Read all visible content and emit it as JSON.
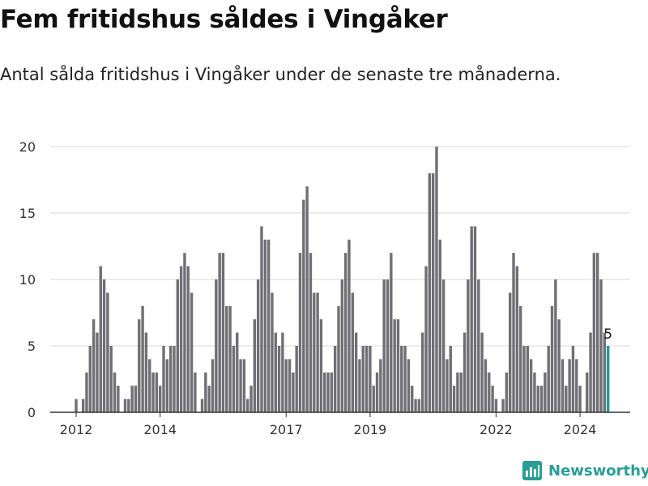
{
  "header": {
    "title": "Fem fritidshus såldes i Vingåker",
    "subtitle": "Antal sålda fritidshus i Vingåker under de senaste tre månaderna."
  },
  "branding": {
    "name": "Newsworthy",
    "icon": "newsworthy-logo-icon",
    "color": "#2a9d96"
  },
  "colors": {
    "bar": "#706f73",
    "highlight": "#1a9a95",
    "grid": "#d9d9d9",
    "axis": "#333333"
  },
  "chart_data": {
    "type": "bar",
    "title": "",
    "xlabel": "",
    "ylabel": "",
    "ylim": [
      0,
      20
    ],
    "yticks": [
      0,
      5,
      10,
      15,
      20
    ],
    "xticks": [
      {
        "label": "2012",
        "index": 1
      },
      {
        "label": "2014",
        "index": 25
      },
      {
        "label": "2017",
        "index": 61
      },
      {
        "label": "2019",
        "index": 85
      },
      {
        "label": "2022",
        "index": 121
      },
      {
        "label": "2024",
        "index": 145
      }
    ],
    "grid": true,
    "values": [
      0,
      1,
      0,
      1,
      3,
      5,
      7,
      6,
      11,
      10,
      9,
      5,
      3,
      2,
      0,
      1,
      1,
      2,
      2,
      7,
      8,
      6,
      4,
      3,
      3,
      2,
      5,
      4,
      5,
      5,
      10,
      11,
      12,
      11,
      9,
      3,
      0,
      1,
      3,
      2,
      4,
      10,
      12,
      12,
      8,
      8,
      5,
      6,
      4,
      4,
      1,
      2,
      7,
      10,
      14,
      13,
      13,
      9,
      6,
      5,
      6,
      4,
      4,
      3,
      5,
      12,
      16,
      17,
      12,
      9,
      9,
      7,
      3,
      3,
      3,
      5,
      8,
      10,
      12,
      13,
      9,
      6,
      4,
      5,
      5,
      5,
      2,
      3,
      4,
      10,
      10,
      12,
      7,
      7,
      5,
      5,
      4,
      2,
      1,
      1,
      6,
      11,
      18,
      18,
      20,
      13,
      10,
      4,
      5,
      2,
      3,
      3,
      6,
      10,
      14,
      14,
      10,
      6,
      4,
      3,
      2,
      1,
      0,
      1,
      3,
      9,
      12,
      11,
      8,
      5,
      5,
      4,
      3,
      2,
      2,
      3,
      5,
      8,
      10,
      7,
      4,
      2,
      4,
      5,
      4,
      2,
      0,
      3,
      6,
      12,
      12,
      10,
      6,
      5
    ],
    "highlight": {
      "index": 153,
      "label": "5"
    }
  }
}
